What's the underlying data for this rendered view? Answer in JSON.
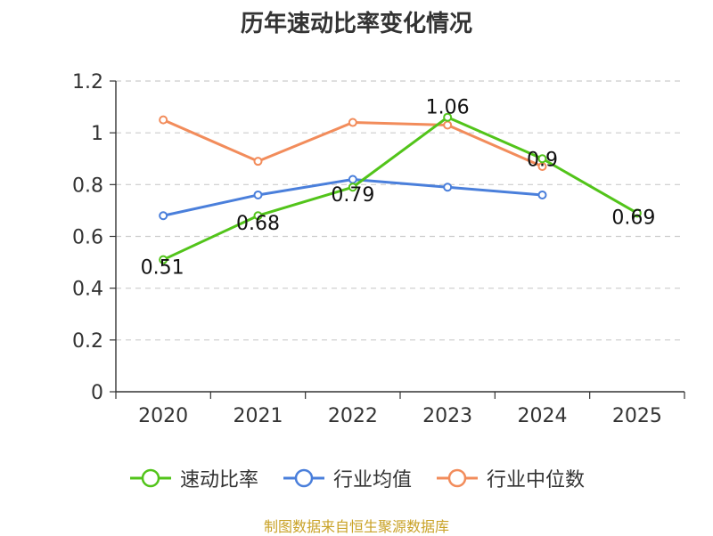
{
  "chart_data": {
    "type": "line",
    "title": "历年速动比率变化情况",
    "categories": [
      "2020",
      "2021",
      "2022",
      "2023",
      "2024",
      "2025"
    ],
    "ylim": [
      0,
      1.2
    ],
    "yticks": [
      "0",
      "0.2",
      "0.4",
      "0.6",
      "0.8",
      "1",
      "1.2"
    ],
    "grid": true,
    "legend_position": "bottom",
    "series": [
      {
        "name": "速动比率",
        "color": "#52c41a",
        "values": [
          0.51,
          0.68,
          0.79,
          1.06,
          0.9,
          0.69
        ],
        "labels": [
          "0.51",
          "0.68",
          "0.79",
          "1.06",
          "0.9",
          "0.69"
        ]
      },
      {
        "name": "行业均值",
        "color": "#4a7fdb",
        "values": [
          0.68,
          0.76,
          0.82,
          0.79,
          0.76,
          null
        ]
      },
      {
        "name": "行业中位数",
        "color": "#f28c5b",
        "values": [
          1.05,
          0.89,
          1.04,
          1.03,
          0.87,
          null
        ]
      }
    ]
  },
  "source": "制图数据来自恒生聚源数据库"
}
